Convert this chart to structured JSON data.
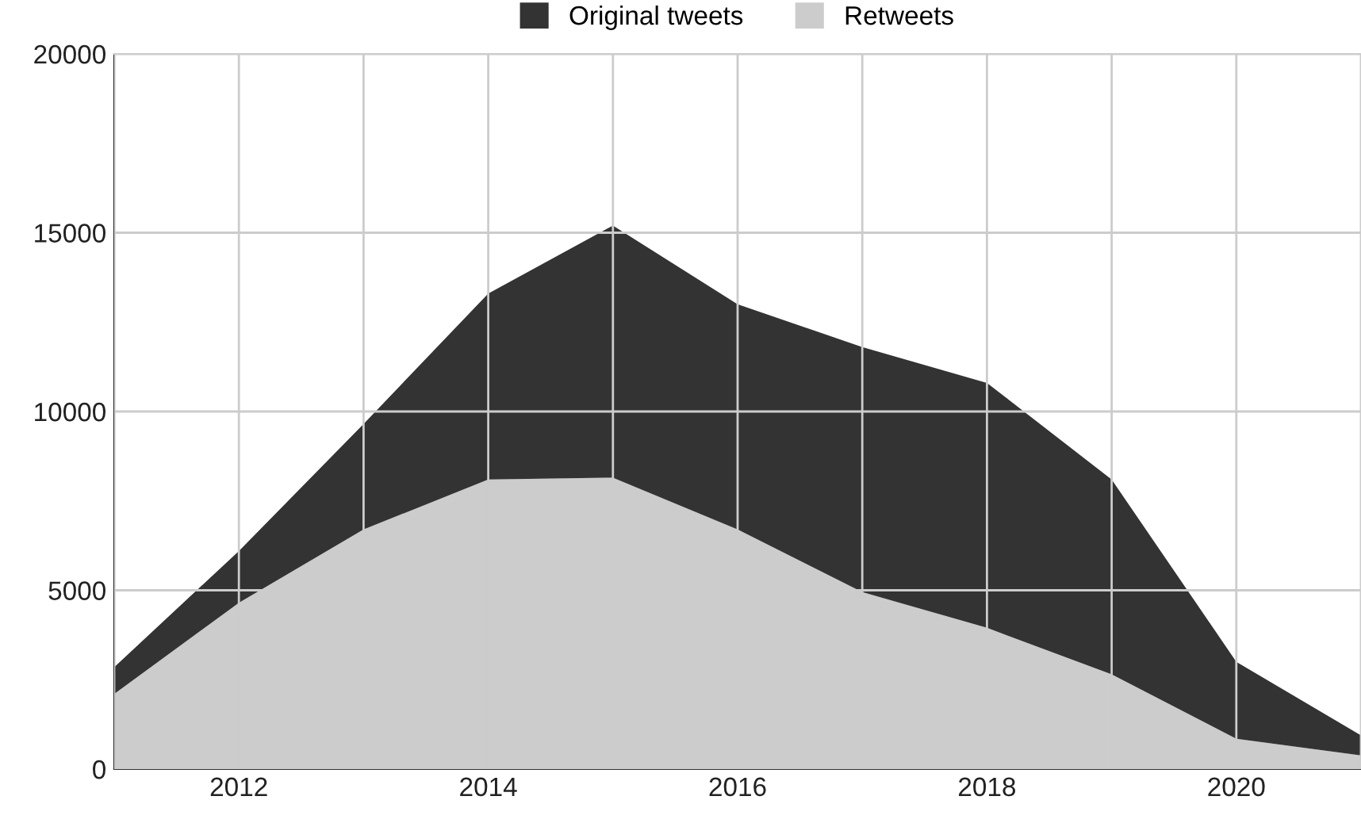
{
  "chart_data": {
    "type": "area",
    "stacked": true,
    "x": [
      2011,
      2012,
      2013,
      2014,
      2015,
      2016,
      2017,
      2018,
      2019,
      2020,
      2021
    ],
    "series": [
      {
        "name": "Retweets",
        "color": "#cccccc",
        "values": [
          2100,
          4650,
          6700,
          8100,
          8150,
          6700,
          4950,
          3950,
          2650,
          850,
          380
        ]
      },
      {
        "name": "Original tweets",
        "color": "#333333",
        "values": [
          750,
          1450,
          2950,
          5200,
          7050,
          6300,
          6850,
          6850,
          5450,
          2150,
          560
        ]
      }
    ],
    "xlim": [
      2011,
      2021
    ],
    "ylim": [
      0,
      20000
    ],
    "xticks": [
      {
        "value": 2011,
        "label": null
      },
      2012,
      {
        "value": 2013,
        "label": null
      },
      2014,
      {
        "value": 2015,
        "label": null
      },
      2016,
      {
        "value": 2017,
        "label": null
      },
      2018,
      {
        "value": 2019,
        "label": null
      },
      2020,
      {
        "value": 2021,
        "label": null
      }
    ],
    "yticks": [
      0,
      5000,
      10000,
      15000,
      20000
    ],
    "grid": true,
    "legend": "top"
  }
}
